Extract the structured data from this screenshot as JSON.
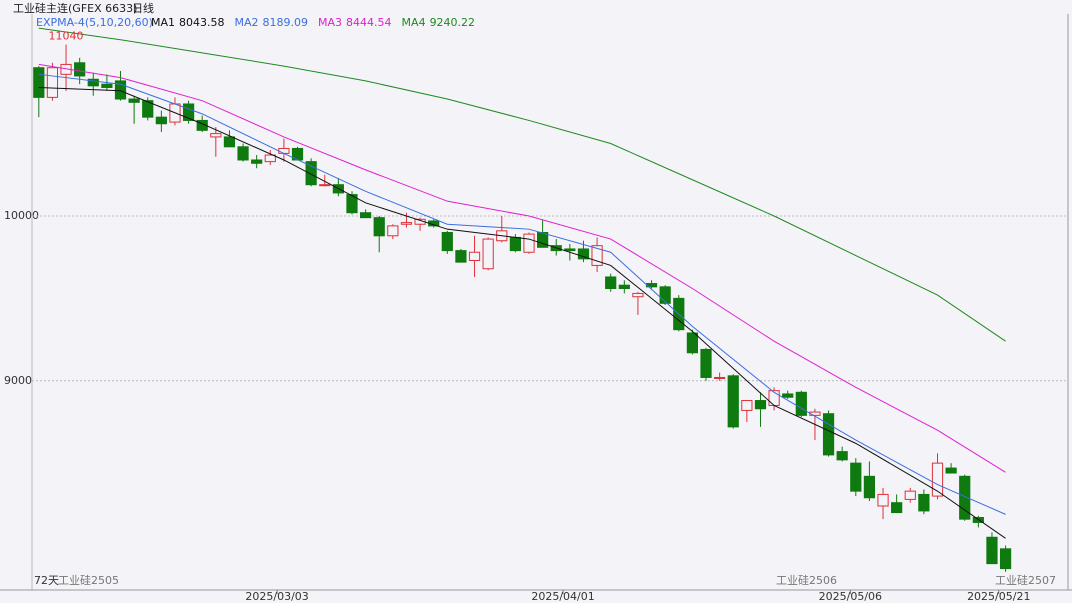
{
  "chart_data": {
    "type": "candlestick",
    "title": "工业硅主连(GFEX 6633)",
    "period": "日线",
    "indicator": "EXPMA-4(5,10,20,60)",
    "up_color": "#e0303a",
    "down_color": "#0f7a0f",
    "grid": true,
    "ylim": [
      7730,
      11220
    ],
    "yticks": [
      9000,
      10000
    ],
    "xlim": [
      -0.5,
      72.5
    ],
    "xticks": [
      {
        "value": 17.5,
        "label": "2025/03/03"
      },
      {
        "value": 38.5,
        "label": "2025/04/01"
      },
      {
        "value": 59.6,
        "label": "2025/05/06"
      },
      {
        "value": 70.5,
        "label": "2025/05/21"
      }
    ],
    "open": [
      10900,
      10720,
      10860,
      10930,
      10830,
      10800,
      10820,
      10710,
      10700,
      10600,
      10570,
      10680,
      10580,
      10480,
      10480,
      10420,
      10340,
      10330,
      10380,
      10410,
      10330,
      10190,
      10190,
      10130,
      10020,
      9990,
      9880,
      9950,
      9950,
      9970,
      9900,
      9790,
      9730,
      9680,
      9850,
      9870,
      9780,
      9900,
      9820,
      9800,
      9800,
      9700,
      9630,
      9580,
      9510,
      9590,
      9570,
      9500,
      9290,
      9190,
      9020,
      9030,
      8820,
      8880,
      8850,
      8920,
      8930,
      8790,
      8800,
      8570,
      8500,
      8420,
      8240,
      8260,
      8280,
      8310,
      8300,
      8470,
      8420,
      8170,
      8050,
      7980
    ],
    "high": [
      10910,
      10930,
      11040,
      10960,
      10870,
      10860,
      10880,
      10730,
      10720,
      10640,
      10720,
      10700,
      10610,
      10540,
      10520,
      10440,
      10370,
      10400,
      10470,
      10420,
      10350,
      10250,
      10230,
      10150,
      10040,
      10000,
      9950,
      10020,
      9990,
      9980,
      9910,
      9800,
      9880,
      9870,
      10000,
      9890,
      9900,
      9980,
      9860,
      9830,
      9850,
      9870,
      9650,
      9610,
      9540,
      9610,
      9580,
      9520,
      9310,
      9200,
      9050,
      9040,
      8880,
      8930,
      8960,
      8940,
      8940,
      8830,
      8820,
      8600,
      8530,
      8510,
      8350,
      8310,
      8350,
      8340,
      8560,
      8500,
      8430,
      8180,
      8080,
      8000
    ],
    "low": [
      10600,
      10700,
      10760,
      10800,
      10730,
      10760,
      10700,
      10560,
      10580,
      10510,
      10550,
      10560,
      10510,
      10360,
      10420,
      10330,
      10290,
      10310,
      10330,
      10340,
      10180,
      10180,
      10120,
      10010,
      9990,
      9780,
      9860,
      9930,
      9910,
      9930,
      9770,
      9720,
      9630,
      9670,
      9840,
      9780,
      9770,
      9810,
      9760,
      9730,
      9720,
      9660,
      9540,
      9530,
      9400,
      9560,
      9460,
      9300,
      9160,
      9000,
      9000,
      8710,
      8750,
      8720,
      8820,
      8890,
      8780,
      8640,
      8540,
      8510,
      8300,
      8270,
      8160,
      8200,
      8260,
      8190,
      8280,
      8440,
      8150,
      8110,
      7890,
      7840
    ],
    "close": [
      10720,
      10900,
      10920,
      10850,
      10790,
      10780,
      10710,
      10690,
      10600,
      10560,
      10680,
      10580,
      10520,
      10500,
      10420,
      10340,
      10320,
      10370,
      10410,
      10340,
      10190,
      10190,
      10140,
      10020,
      9990,
      9880,
      9940,
      9960,
      9980,
      9940,
      9790,
      9720,
      9780,
      9860,
      9910,
      9790,
      9890,
      9810,
      9790,
      9790,
      9740,
      9820,
      9560,
      9560,
      9530,
      9570,
      9470,
      9310,
      9170,
      9020,
      9020,
      8720,
      8880,
      8830,
      8940,
      8900,
      8790,
      8810,
      8550,
      8520,
      8330,
      8290,
      8310,
      8200,
      8330,
      8210,
      8500,
      8440,
      8160,
      8140,
      7890,
      7860
    ],
    "series": [
      {
        "name": "MA1",
        "value_label": "8043.58",
        "color": "#111111",
        "x": [
          0,
          6,
          12,
          18,
          24,
          30,
          36,
          42,
          48,
          54,
          60,
          66,
          71
        ],
        "values": [
          10780,
          10760,
          10560,
          10340,
          10080,
          9920,
          9860,
          9700,
          9300,
          8850,
          8620,
          8330,
          8043.58
        ]
      },
      {
        "name": "MA2",
        "value_label": "8189.09",
        "color": "#3a6fe0",
        "x": [
          0,
          6,
          12,
          18,
          24,
          30,
          36,
          42,
          48,
          54,
          60,
          66,
          71
        ],
        "values": [
          10860,
          10800,
          10620,
          10380,
          10150,
          9950,
          9920,
          9780,
          9330,
          8930,
          8640,
          8370,
          8189.09
        ]
      },
      {
        "name": "MA3",
        "value_label": "8444.54",
        "color": "#e020d0",
        "x": [
          0,
          6,
          12,
          18,
          24,
          30,
          36,
          42,
          48,
          54,
          60,
          66,
          71
        ],
        "values": [
          10920,
          10840,
          10700,
          10480,
          10280,
          10090,
          10000,
          9860,
          9560,
          9240,
          8960,
          8700,
          8444.54
        ]
      },
      {
        "name": "MA4",
        "value_label": "9240.22",
        "color": "#1f8a1f",
        "x": [
          0,
          6,
          12,
          18,
          24,
          30,
          36,
          42,
          48,
          54,
          60,
          66,
          71
        ],
        "values": [
          11140,
          11070,
          10990,
          10910,
          10820,
          10710,
          10580,
          10440,
          10220,
          10000,
          9760,
          9520,
          9240.22
        ]
      }
    ],
    "annotations": {
      "high_label": "11040",
      "days": "72天",
      "contract1": "工业硅2505",
      "contract2": "工业硅2506",
      "contract3": "工业硅2507"
    }
  }
}
